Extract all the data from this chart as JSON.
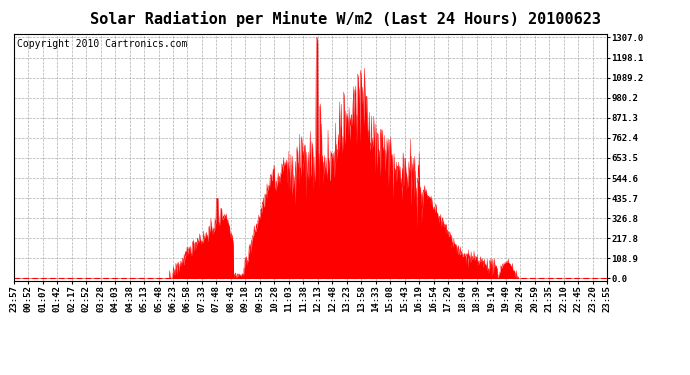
{
  "title": "Solar Radiation per Minute W/m2 (Last 24 Hours) 20100623",
  "copyright": "Copyright 2010 Cartronics.com",
  "y_ticks": [
    0.0,
    108.9,
    217.8,
    326.8,
    435.7,
    544.6,
    653.5,
    762.4,
    871.3,
    980.2,
    1089.2,
    1198.1,
    1307.0
  ],
  "y_max": 1307.0,
  "x_labels": [
    "23:57",
    "00:52",
    "01:07",
    "01:42",
    "02:17",
    "02:52",
    "03:28",
    "04:03",
    "04:38",
    "05:13",
    "05:48",
    "06:23",
    "06:58",
    "07:33",
    "07:48",
    "08:43",
    "09:18",
    "09:53",
    "10:28",
    "11:03",
    "11:38",
    "12:13",
    "12:48",
    "13:23",
    "13:58",
    "14:33",
    "15:08",
    "15:43",
    "16:19",
    "16:54",
    "17:29",
    "18:04",
    "18:39",
    "19:14",
    "19:49",
    "20:24",
    "20:59",
    "21:35",
    "22:10",
    "22:45",
    "23:20",
    "23:55"
  ],
  "fill_color": "#FF0000",
  "line_color": "#FF0000",
  "bg_color": "#FFFFFF",
  "grid_color": "#AAAAAA",
  "dashed_line_color": "#FF0000",
  "title_fontsize": 11,
  "copyright_fontsize": 7,
  "tick_fontsize": 6.5
}
